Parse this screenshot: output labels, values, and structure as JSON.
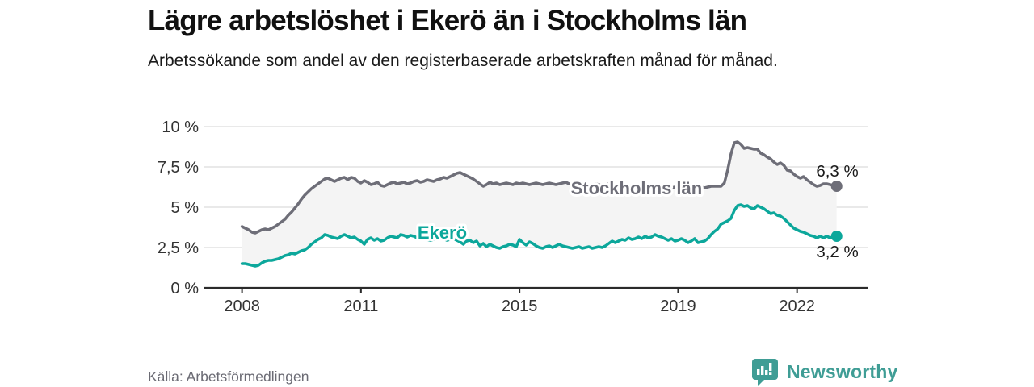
{
  "header": {
    "title": "Lägre arbetslöshet i Ekerö än i Stockholms län",
    "subtitle": "Arbetssökande som andel av den registerbaserade arbetskraften månad för månad."
  },
  "footer": {
    "source": "Källa: Arbetsförmedlingen",
    "brand": "Newsworthy",
    "brand_icon": "speech-bubble-bar-chart"
  },
  "colors": {
    "stockholm_line": "#6e6e78",
    "ekero_line": "#0ca79b",
    "band_fill": "#f4f4f4",
    "gridline": "#dcdcdc",
    "axis": "#2b2b2b",
    "tick_text": "#333333",
    "value_label_text": "#1a1a1a",
    "brand_teal": "#3f9d95"
  },
  "chart_data": {
    "type": "line",
    "title": "Lägre arbetslöshet i Ekerö än i Stockholms län",
    "subtitle": "Arbetssökande som andel av den registerbaserade arbetskraften månad för månad.",
    "x_unit": "year (monthly data)",
    "x_start": 2008.0,
    "x_step": "monthly",
    "xlim": [
      2007.05,
      2023.8
    ],
    "ylim": [
      0,
      10
    ],
    "grid": true,
    "legend_position": "inline-labels",
    "band_between_series": true,
    "y_ticks": [
      {
        "value": 0,
        "label": "0 %"
      },
      {
        "value": 2.5,
        "label": "2,5 %"
      },
      {
        "value": 5,
        "label": "5 %"
      },
      {
        "value": 7.5,
        "label": "7,5 %"
      },
      {
        "value": 10,
        "label": "10 %"
      }
    ],
    "x_ticks": [
      {
        "value": 2008,
        "label": "2008"
      },
      {
        "value": 2011,
        "label": "2011"
      },
      {
        "value": 2015,
        "label": "2015"
      },
      {
        "value": 2019,
        "label": "2019"
      },
      {
        "value": 2022,
        "label": "2022"
      }
    ],
    "series": [
      {
        "name": "Stockholms län",
        "color": "#6e6e78",
        "end_label": "6,3 %",
        "end_label_side": "above",
        "inline_label_at": {
          "x": 2017.95,
          "y": 6.2
        },
        "values": [
          3.8,
          3.7,
          3.6,
          3.45,
          3.4,
          3.5,
          3.6,
          3.65,
          3.6,
          3.7,
          3.8,
          3.95,
          4.1,
          4.25,
          4.5,
          4.7,
          4.95,
          5.2,
          5.5,
          5.75,
          5.95,
          6.15,
          6.3,
          6.45,
          6.6,
          6.75,
          6.8,
          6.7,
          6.6,
          6.7,
          6.8,
          6.85,
          6.7,
          6.85,
          6.8,
          6.6,
          6.5,
          6.65,
          6.55,
          6.4,
          6.45,
          6.55,
          6.35,
          6.3,
          6.4,
          6.5,
          6.55,
          6.45,
          6.5,
          6.55,
          6.45,
          6.5,
          6.6,
          6.65,
          6.55,
          6.6,
          6.7,
          6.65,
          6.6,
          6.7,
          6.75,
          6.85,
          6.8,
          6.9,
          7.0,
          7.1,
          7.15,
          7.05,
          6.95,
          6.85,
          6.75,
          6.6,
          6.45,
          6.3,
          6.4,
          6.55,
          6.45,
          6.5,
          6.4,
          6.45,
          6.5,
          6.45,
          6.4,
          6.5,
          6.45,
          6.5,
          6.45,
          6.4,
          6.45,
          6.5,
          6.45,
          6.4,
          6.45,
          6.5,
          6.45,
          6.4,
          6.45,
          6.5,
          6.55,
          6.45,
          6.4,
          6.45,
          6.5,
          6.45,
          6.4,
          6.35,
          6.4,
          6.45,
          6.4,
          6.35,
          6.4,
          6.45,
          6.4,
          6.35,
          6.3,
          6.35,
          6.4,
          6.35,
          6.3,
          6.35,
          6.3,
          6.25,
          6.3,
          6.25,
          6.2,
          6.25,
          6.2,
          6.15,
          6.2,
          6.15,
          6.2,
          6.25,
          6.2,
          6.15,
          6.2,
          6.25,
          6.2,
          6.25,
          6.3,
          6.25,
          6.2,
          6.25,
          6.3,
          6.3,
          6.3,
          6.3,
          6.5,
          7.3,
          8.3,
          9.0,
          9.05,
          8.9,
          8.65,
          8.7,
          8.65,
          8.6,
          8.6,
          8.35,
          8.25,
          8.1,
          8.0,
          7.8,
          7.65,
          7.75,
          7.6,
          7.3,
          7.25,
          7.05,
          6.9,
          6.8,
          6.9,
          6.7,
          6.55,
          6.4,
          6.3,
          6.35,
          6.45,
          6.45,
          6.4,
          6.35,
          6.3
        ]
      },
      {
        "name": "Ekerö",
        "color": "#0ca79b",
        "end_label": "3,2 %",
        "end_label_side": "below",
        "inline_label_at": {
          "x": 2013.05,
          "y": 3.45
        },
        "values": [
          1.5,
          1.5,
          1.45,
          1.4,
          1.35,
          1.4,
          1.55,
          1.65,
          1.7,
          1.7,
          1.75,
          1.8,
          1.9,
          2.0,
          2.05,
          2.15,
          2.1,
          2.2,
          2.3,
          2.35,
          2.5,
          2.7,
          2.85,
          3.0,
          3.1,
          3.3,
          3.25,
          3.15,
          3.1,
          3.05,
          3.2,
          3.3,
          3.2,
          3.1,
          3.15,
          3.0,
          2.9,
          2.7,
          3.0,
          3.1,
          2.95,
          3.05,
          2.9,
          2.95,
          3.1,
          3.2,
          3.15,
          3.1,
          3.3,
          3.25,
          3.15,
          3.25,
          3.2,
          3.1,
          3.05,
          3.1,
          3.0,
          2.95,
          3.0,
          3.1,
          3.1,
          3.05,
          2.95,
          3.0,
          3.05,
          2.95,
          2.85,
          2.7,
          2.9,
          2.95,
          2.8,
          2.9,
          2.6,
          2.75,
          2.55,
          2.7,
          2.6,
          2.5,
          2.45,
          2.55,
          2.6,
          2.7,
          2.65,
          2.55,
          3.0,
          2.8,
          2.65,
          2.85,
          2.75,
          2.6,
          2.5,
          2.45,
          2.55,
          2.6,
          2.5,
          2.6,
          2.7,
          2.6,
          2.55,
          2.5,
          2.45,
          2.5,
          2.55,
          2.45,
          2.5,
          2.55,
          2.45,
          2.5,
          2.55,
          2.5,
          2.6,
          2.75,
          2.9,
          2.8,
          2.9,
          3.0,
          2.95,
          3.1,
          3.0,
          3.05,
          3.15,
          3.05,
          3.2,
          3.1,
          3.15,
          3.3,
          3.2,
          3.15,
          3.05,
          2.95,
          3.05,
          2.9,
          2.95,
          3.05,
          2.95,
          2.8,
          2.9,
          3.05,
          2.8,
          2.85,
          2.9,
          3.05,
          3.3,
          3.5,
          3.65,
          3.95,
          4.05,
          4.15,
          4.3,
          4.8,
          5.1,
          5.15,
          5.05,
          5.1,
          4.95,
          4.9,
          5.1,
          5.0,
          4.9,
          4.75,
          4.6,
          4.65,
          4.5,
          4.45,
          4.3,
          4.1,
          3.9,
          3.7,
          3.6,
          3.5,
          3.45,
          3.35,
          3.25,
          3.2,
          3.1,
          3.2,
          3.1,
          3.2,
          3.1,
          3.15,
          3.2
        ]
      }
    ]
  }
}
